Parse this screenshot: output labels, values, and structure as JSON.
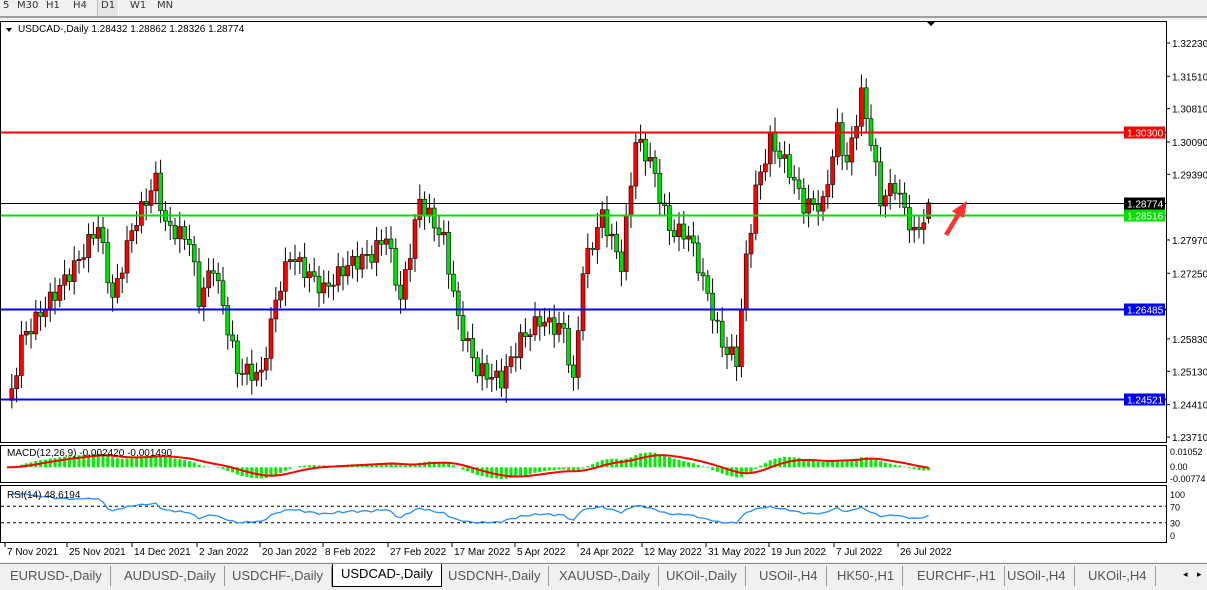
{
  "toolbar": {
    "timeframes": [
      "5",
      "M30",
      "H1",
      "H4",
      "D1",
      "W1",
      "MN"
    ],
    "active": "D1"
  },
  "chart_data": {
    "type": "candlestick",
    "title": "USDCAD-,Daily  1.28432 1.28862 1.28326 1.28774",
    "symbol": "USDCAD-,Daily",
    "ohlc_last": {
      "open": 1.28432,
      "high": 1.28862,
      "low": 1.28326,
      "close": 1.28774
    },
    "ylim": [
      1.235,
      1.3265
    ],
    "price_ticks": [
      "1.32230",
      "1.31510",
      "1.30810",
      "1.30090",
      "1.29390",
      "1.27970",
      "1.27250",
      "1.25830",
      "1.25130",
      "1.24410",
      "1.23710"
    ],
    "x_tick_labels": [
      "7 Nov 2021",
      "25 Nov 2021",
      "14 Dec 2021",
      "2 Jan 2022",
      "20 Jan 2022",
      "8 Feb 2022",
      "27 Feb 2022",
      "17 Mar 2022",
      "5 Apr 2022",
      "24 Apr 2022",
      "12 May 2022",
      "31 May 2022",
      "19 Jun 2022",
      "7 Jul 2022",
      "26 Jul 2022"
    ],
    "close_path_bar_close": [
      [
        0,
        1.245
      ],
      [
        1,
        1.2462
      ],
      [
        3,
        1.2581
      ],
      [
        9,
        1.2667
      ],
      [
        15,
        1.2754
      ],
      [
        19,
        1.2829
      ],
      [
        22,
        1.2667
      ],
      [
        26,
        1.2819
      ],
      [
        31,
        1.2927
      ],
      [
        33,
        1.2829
      ],
      [
        38,
        1.2797
      ],
      [
        40,
        1.2667
      ],
      [
        43,
        1.2743
      ],
      [
        48,
        1.2516
      ],
      [
        53,
        1.2505
      ],
      [
        56,
        1.2667
      ],
      [
        59,
        1.2765
      ],
      [
        66,
        1.2689
      ],
      [
        71,
        1.2743
      ],
      [
        76,
        1.2765
      ],
      [
        79,
        1.2808
      ],
      [
        82,
        1.2667
      ],
      [
        86,
        1.2883
      ],
      [
        91,
        1.2797
      ],
      [
        94,
        1.2624
      ],
      [
        98,
        1.2516
      ],
      [
        103,
        1.2494
      ],
      [
        107,
        1.2581
      ],
      [
        111,
        1.2624
      ],
      [
        116,
        1.2602
      ],
      [
        118,
        1.2483
      ],
      [
        120,
        1.2732
      ],
      [
        124,
        1.2851
      ],
      [
        128,
        1.2743
      ],
      [
        131,
        1.3013
      ],
      [
        134,
        1.297
      ],
      [
        138,
        1.2819
      ],
      [
        142,
        1.2808
      ],
      [
        145,
        1.2711
      ],
      [
        149,
        1.257
      ],
      [
        152,
        1.2537
      ],
      [
        154,
        1.2754
      ],
      [
        156,
        1.2905
      ],
      [
        159,
        1.3013
      ],
      [
        163,
        1.2948
      ],
      [
        166,
        1.2873
      ],
      [
        170,
        1.2873
      ],
      [
        173,
        1.3035
      ],
      [
        175,
        1.2959
      ],
      [
        178,
        1.3111
      ],
      [
        180,
        1.3013
      ],
      [
        182,
        1.2883
      ],
      [
        185,
        1.2916
      ],
      [
        189,
        1.2808
      ],
      [
        191,
        1.2843
      ],
      [
        192,
        1.28774
      ]
    ],
    "horizontal_lines": [
      {
        "price": 1.303,
        "label": "1.30300",
        "color": "#ff0000"
      },
      {
        "price": 1.28774,
        "label": "1.28774",
        "color": "#000000"
      },
      {
        "price": 1.28516,
        "label": "1.28516",
        "color": "#00e000"
      },
      {
        "price": 1.26485,
        "label": "1.26485",
        "color": "#0000ff"
      },
      {
        "price": 1.24521,
        "label": "1.24521",
        "color": "#0000ff"
      }
    ],
    "bull_color": "#ff0000",
    "bear_color": "#00dd00",
    "annotation": "red-up-arrow",
    "macd": {
      "label": "MACD(12,26,9) -0.002420 -0.001490",
      "ticks": [
        "0.01052",
        "0.00",
        "-0.00774"
      ],
      "ylim": [
        -0.00774,
        0.01052
      ],
      "hist_color": "#00ee00",
      "signal_color": "#ff0000"
    },
    "rsi": {
      "label": "RSI(14) 48.6194",
      "ticks": [
        "100",
        "70",
        "30",
        "0"
      ],
      "levels": [
        70,
        30
      ],
      "line_color": "#1e90ff"
    }
  },
  "tabs": [
    "EURUSD-,Daily",
    "AUDUSD-,Daily",
    "USDCHF-,Daily",
    "USDCAD-,Daily",
    "USDCNH-,Daily",
    "XAUUSD-,Daily",
    "UKOil-,Daily",
    "USOil-,H4",
    "HK50-,H1",
    "EURCHF-,H1",
    "USOil-,H4",
    "UKOil-,H4"
  ],
  "active_tab": "USDCAD-,Daily"
}
